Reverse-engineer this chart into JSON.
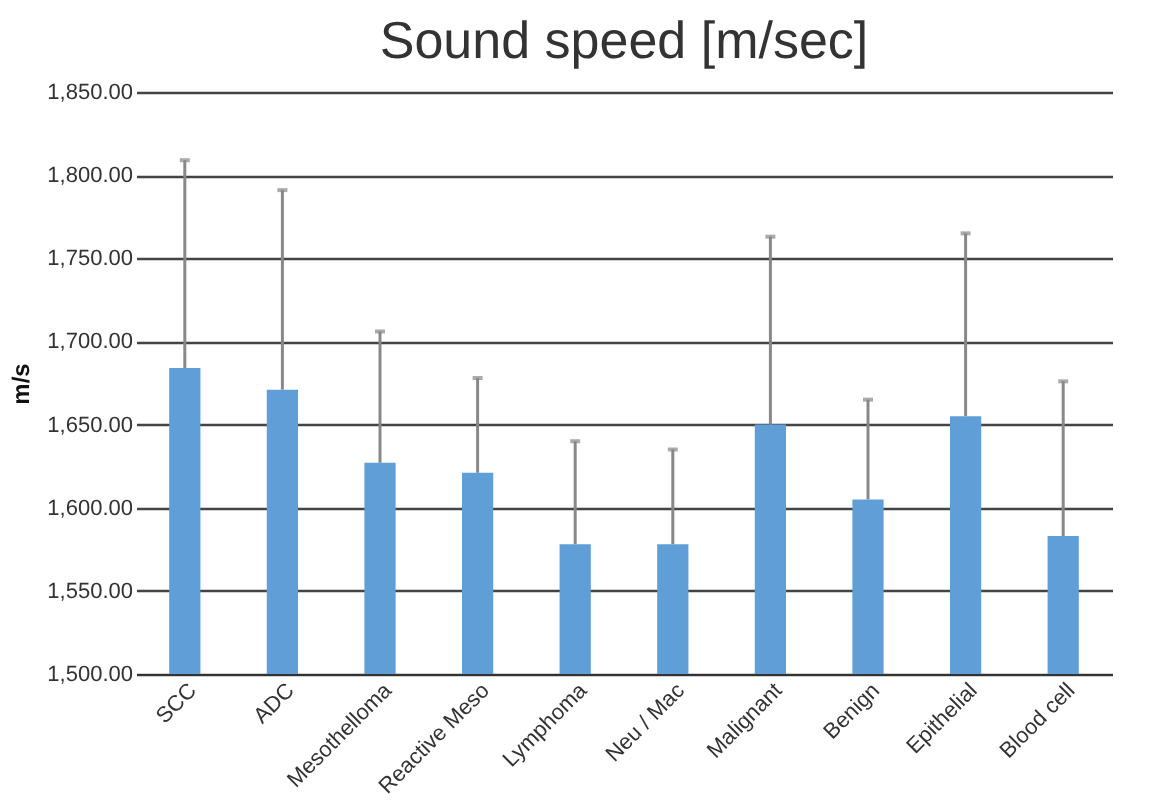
{
  "chart_data": {
    "type": "bar",
    "title": "Sound speed [m/sec]",
    "ylabel": "m/s",
    "categories": [
      "SCC",
      "ADC",
      "Mesothelloma",
      "Reactive Meso",
      "Lymphoma",
      "Neu / Mac",
      "Malignant",
      "Benign",
      "Epithelial",
      "Blood cell"
    ],
    "values": [
      1684,
      1671,
      1627,
      1621,
      1578,
      1578,
      1650,
      1605,
      1655,
      1583
    ],
    "errors": [
      [
        1684,
        1809
      ],
      [
        1671,
        1791
      ],
      [
        1627,
        1706
      ],
      [
        1621,
        1678
      ],
      [
        1578,
        1640
      ],
      [
        1578,
        1635
      ],
      [
        1650,
        1763
      ],
      [
        1605,
        1665
      ],
      [
        1655,
        1765
      ],
      [
        1583,
        1676
      ]
    ],
    "color": "#5f9ed6",
    "ylim": [
      1500,
      1850
    ],
    "yticks": [
      {
        "value": 1500,
        "label": "1,500.00"
      },
      {
        "value": 1550,
        "label": "1,550.00"
      },
      {
        "value": 1600,
        "label": "1,600.00"
      },
      {
        "value": 1650,
        "label": "1,650.00"
      },
      {
        "value": 1700,
        "label": "1,700.00"
      },
      {
        "value": 1750,
        "label": "1,750.00"
      },
      {
        "value": 1800,
        "label": "1,800.00"
      },
      {
        "value": 1850,
        "label": "1,850.00"
      }
    ],
    "grid": "y"
  }
}
